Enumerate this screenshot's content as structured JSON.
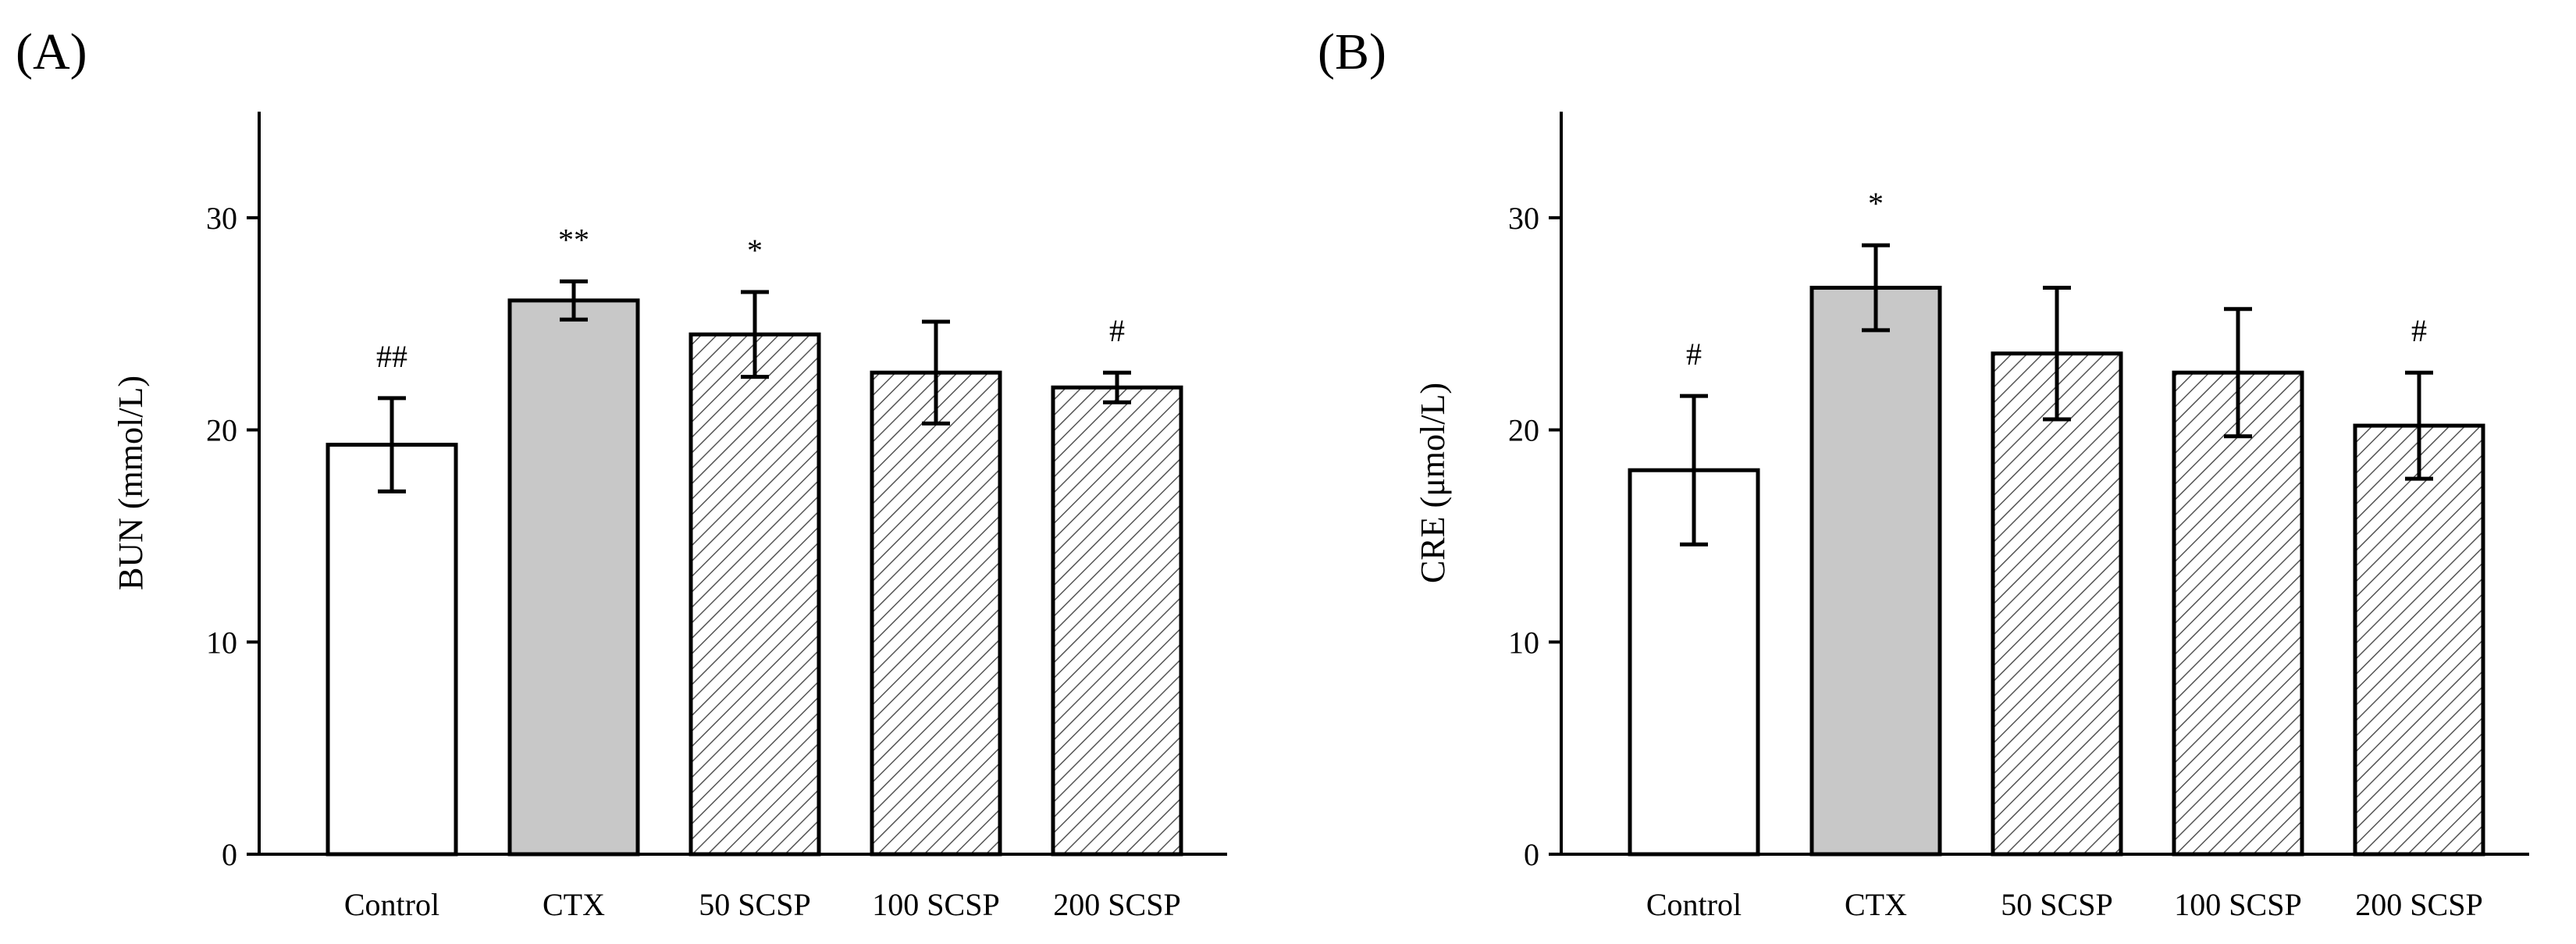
{
  "chart_data": [
    {
      "type": "bar",
      "panel_label": "(A)",
      "title": "",
      "xlabel": "",
      "ylabel": "BUN (mmol/L)",
      "ylim": [
        0,
        35
      ],
      "yticks": [
        0,
        10,
        20,
        30
      ],
      "categories": [
        "Control",
        "CTX",
        "50 SCSP",
        "100 SCSP",
        "200 SCSP"
      ],
      "values": [
        19.3,
        26.1,
        24.5,
        22.7,
        22.0
      ],
      "errors": [
        2.2,
        0.9,
        2.0,
        2.4,
        0.7
      ],
      "annotations": [
        "##",
        "**",
        "*",
        "",
        "#"
      ],
      "fills": [
        "white",
        "gray",
        "hatch",
        "hatch",
        "hatch"
      ],
      "grid": false
    },
    {
      "type": "bar",
      "panel_label": "(B)",
      "title": "",
      "xlabel": "",
      "ylabel": "CRE (μmol/L)",
      "ylim": [
        0,
        35
      ],
      "yticks": [
        0,
        10,
        20,
        30
      ],
      "categories": [
        "Control",
        "CTX",
        "50 SCSP",
        "100 SCSP",
        "200 SCSP"
      ],
      "values": [
        18.1,
        26.7,
        23.6,
        22.7,
        20.2
      ],
      "errors": [
        3.5,
        2.0,
        3.1,
        3.0,
        2.5
      ],
      "annotations": [
        "#",
        "*",
        "",
        "",
        "#"
      ],
      "fills": [
        "white",
        "gray",
        "hatch",
        "hatch",
        "hatch"
      ],
      "grid": false
    }
  ],
  "colors": {
    "gray_fill": "#c8c8c8",
    "white_fill": "#ffffff",
    "hatch_line": "#555555",
    "axis": "#000000"
  }
}
